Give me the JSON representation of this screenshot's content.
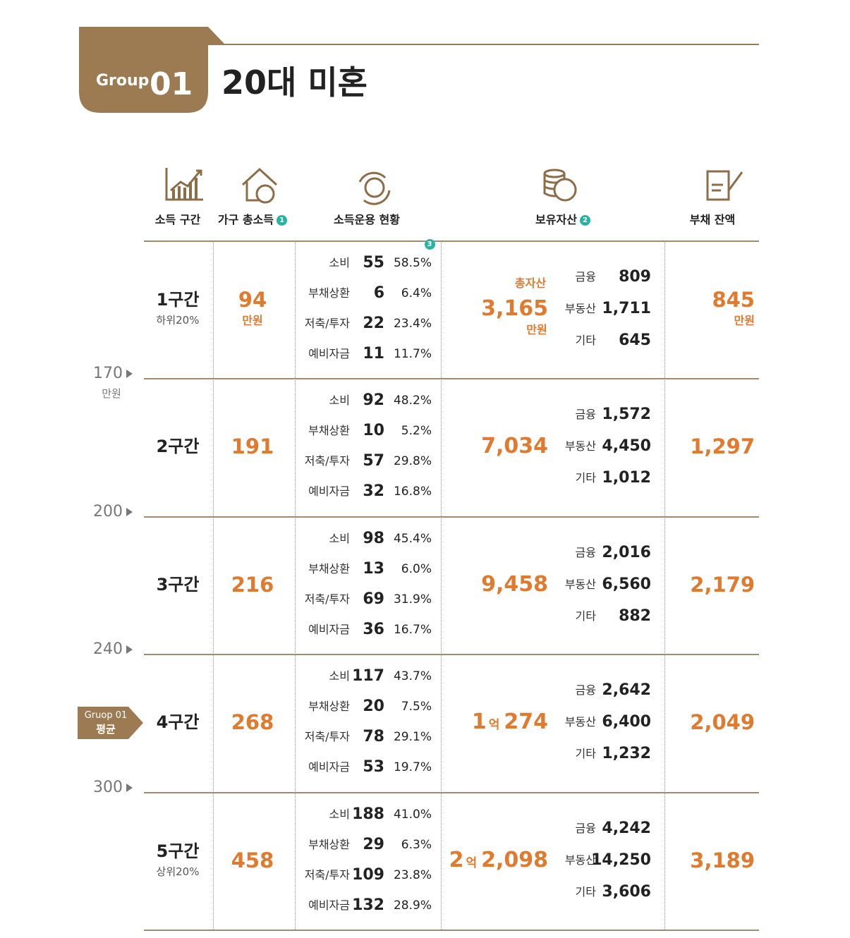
{
  "header": {
    "badge_label": "Group",
    "badge_number": "01",
    "title": "20대 미혼"
  },
  "columns": [
    {
      "label": "소득 구간"
    },
    {
      "label": "가구 총소득",
      "note": "1"
    },
    {
      "label": "소득운용 현황"
    },
    {
      "label": "보유자산",
      "note": "2"
    },
    {
      "label": "부채 잔액"
    }
  ],
  "spending_note": "3",
  "side_scale": {
    "ticks": [
      "170",
      "200",
      "240",
      "300"
    ],
    "unit": "만원"
  },
  "average_marker": {
    "line1": "Gruop 01",
    "line2": "평균"
  },
  "rows": [
    {
      "bracket": "1구간",
      "sub": "하위20%",
      "income": "94",
      "income_unit": "만원",
      "spending": [
        {
          "label": "소비",
          "amount": "55",
          "pct": "58.5%"
        },
        {
          "label": "부채상환",
          "amount": "6",
          "pct": "6.4%"
        },
        {
          "label": "저축/투자",
          "amount": "22",
          "pct": "23.4%"
        },
        {
          "label": "예비자금",
          "amount": "11",
          "pct": "11.7%"
        }
      ],
      "assets": {
        "prefix": "총자산",
        "total": "3,165",
        "unit": "만원",
        "items": [
          {
            "label": "금융",
            "value": "809"
          },
          {
            "label": "부동산",
            "value": "1,711"
          },
          {
            "label": "기타",
            "value": "645"
          }
        ]
      },
      "debt": "845",
      "debt_unit": "만원"
    },
    {
      "bracket": "2구간",
      "income": "191",
      "spending": [
        {
          "label": "소비",
          "amount": "92",
          "pct": "48.2%"
        },
        {
          "label": "부채상환",
          "amount": "10",
          "pct": "5.2%"
        },
        {
          "label": "저축/투자",
          "amount": "57",
          "pct": "29.8%"
        },
        {
          "label": "예비자금",
          "amount": "32",
          "pct": "16.8%"
        }
      ],
      "assets": {
        "total": "7,034",
        "items": [
          {
            "label": "금융",
            "value": "1,572"
          },
          {
            "label": "부동산",
            "value": "4,450"
          },
          {
            "label": "기타",
            "value": "1,012"
          }
        ]
      },
      "debt": "1,297"
    },
    {
      "bracket": "3구간",
      "income": "216",
      "spending": [
        {
          "label": "소비",
          "amount": "98",
          "pct": "45.4%"
        },
        {
          "label": "부채상환",
          "amount": "13",
          "pct": "6.0%"
        },
        {
          "label": "저축/투자",
          "amount": "69",
          "pct": "31.9%"
        },
        {
          "label": "예비자금",
          "amount": "36",
          "pct": "16.7%"
        }
      ],
      "assets": {
        "total": "9,458",
        "items": [
          {
            "label": "금융",
            "value": "2,016"
          },
          {
            "label": "부동산",
            "value": "6,560"
          },
          {
            "label": "기타",
            "value": "882"
          }
        ]
      },
      "debt": "2,179"
    },
    {
      "bracket": "4구간",
      "income": "268",
      "spending": [
        {
          "label": "소비",
          "amount": "117",
          "pct": "43.7%"
        },
        {
          "label": "부채상환",
          "amount": "20",
          "pct": "7.5%"
        },
        {
          "label": "저축/투자",
          "amount": "78",
          "pct": "29.1%"
        },
        {
          "label": "예비자금",
          "amount": "53",
          "pct": "19.7%"
        }
      ],
      "assets": {
        "eok": "1",
        "eok_unit": "억",
        "total": "274",
        "items": [
          {
            "label": "금융",
            "value": "2,642"
          },
          {
            "label": "부동산",
            "value": "6,400"
          },
          {
            "label": "기타",
            "value": "1,232"
          }
        ]
      },
      "debt": "2,049"
    },
    {
      "bracket": "5구간",
      "sub": "상위20%",
      "income": "458",
      "spending": [
        {
          "label": "소비",
          "amount": "188",
          "pct": "41.0%"
        },
        {
          "label": "부채상환",
          "amount": "29",
          "pct": "6.3%"
        },
        {
          "label": "저축/투자",
          "amount": "109",
          "pct": "23.8%"
        },
        {
          "label": "예비자금",
          "amount": "132",
          "pct": "28.9%"
        }
      ],
      "assets": {
        "eok": "2",
        "eok_unit": "억",
        "total": "2,098",
        "items": [
          {
            "label": "금융",
            "value": "4,242"
          },
          {
            "label": "부동산",
            "value": "14,250"
          },
          {
            "label": "기타",
            "value": "3,606"
          }
        ]
      },
      "debt": "3,189"
    }
  ]
}
